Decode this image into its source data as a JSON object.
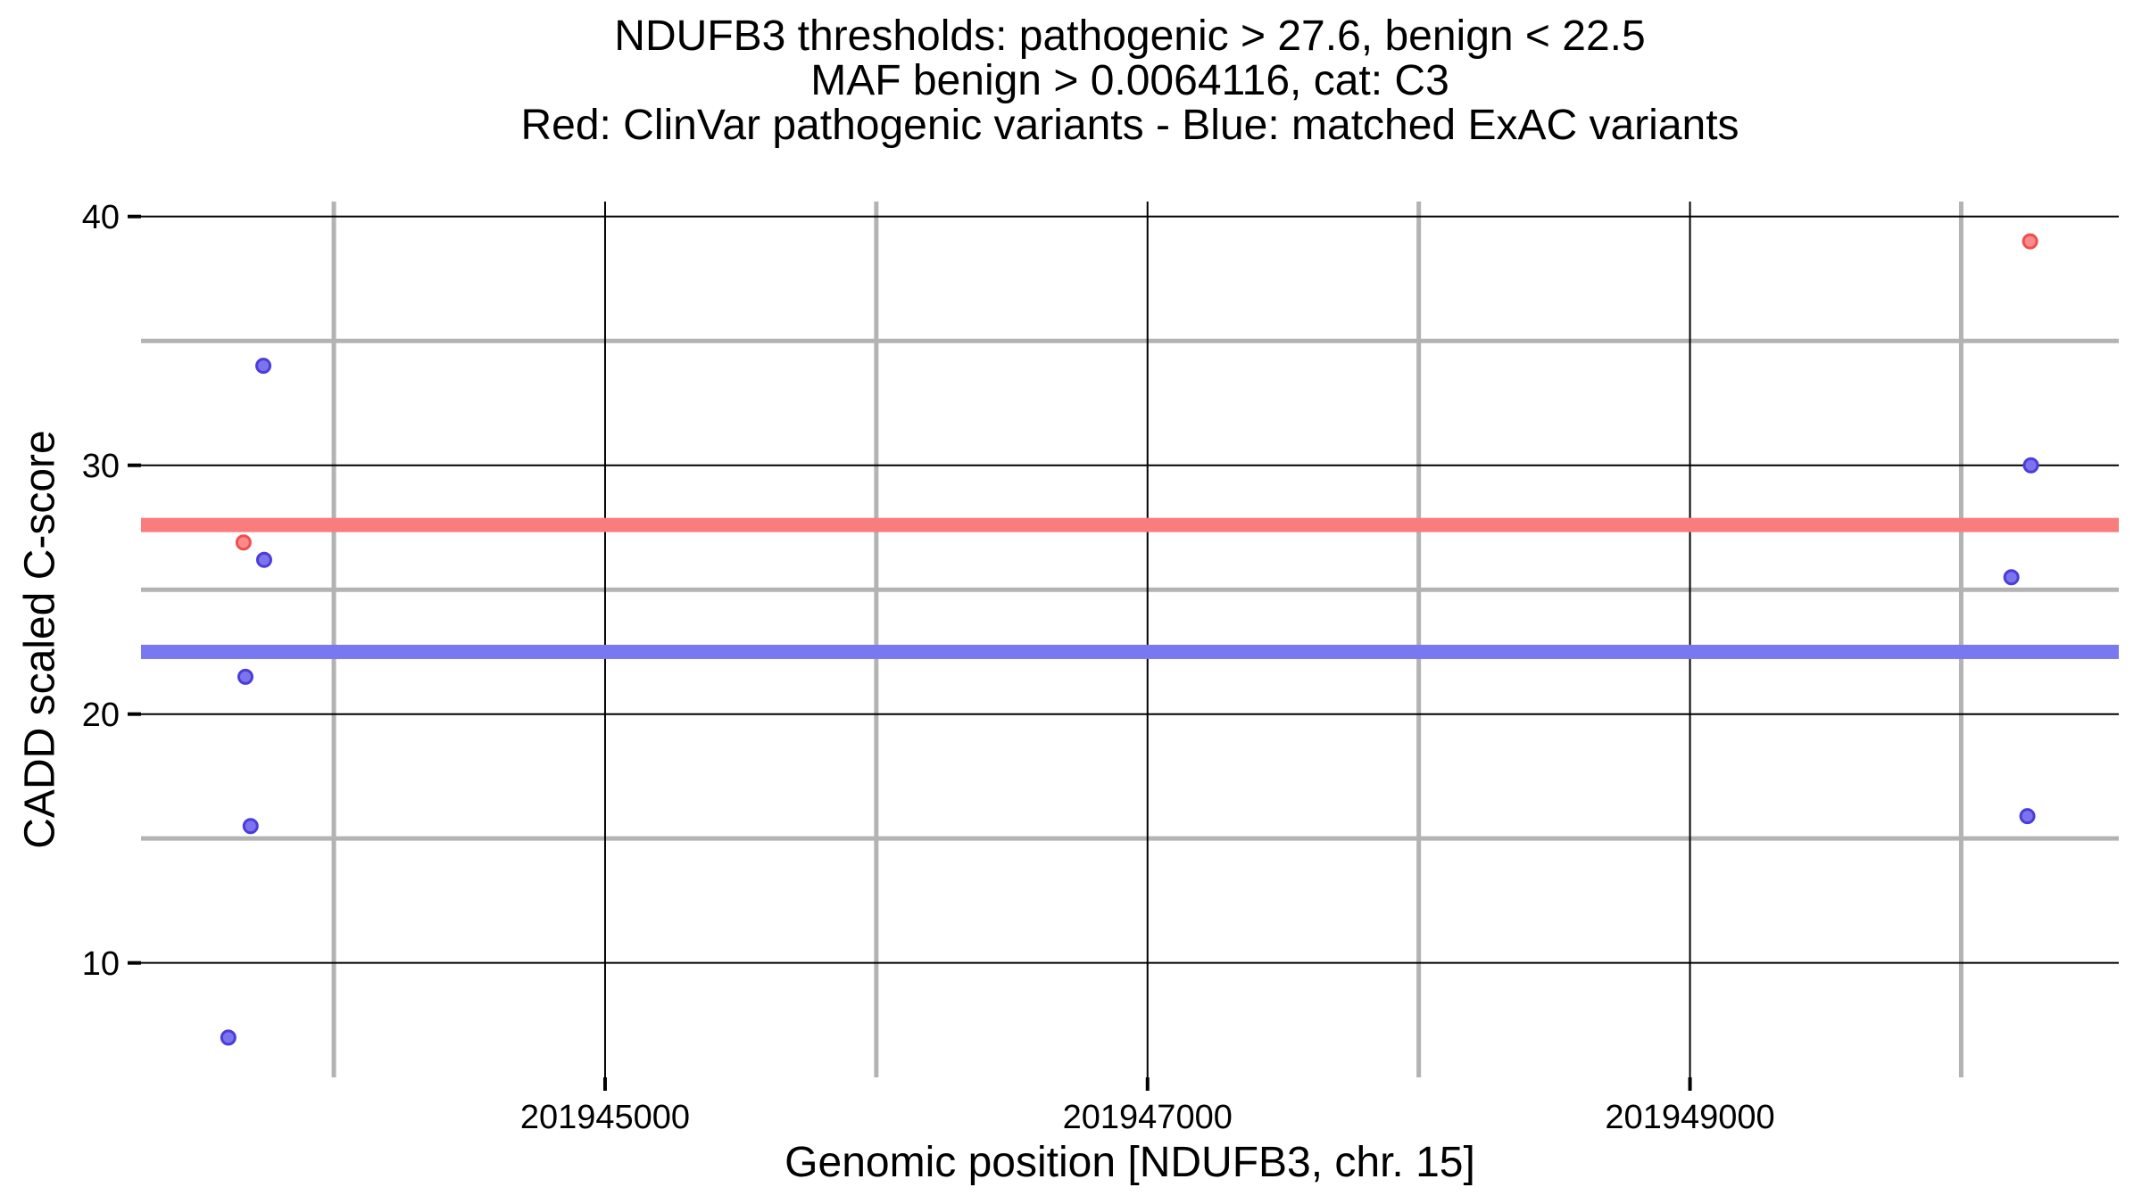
{
  "figure": {
    "title_line1": "NDUFB3 thresholds: pathogenic > 27.6, benign < 22.5",
    "title_line2": "MAF benign > 0.0064116, cat: C3",
    "title_line3": "Red: ClinVar pathogenic variants - Blue: matched ExAC variants"
  },
  "axes": {
    "x": {
      "title": "Genomic position [NDUFB3, chr. 15]"
    },
    "y": {
      "title": "CADD scaled C-score"
    }
  },
  "chart_data": {
    "type": "scatter",
    "title": "NDUFB3 thresholds: pathogenic > 27.6, benign < 22.5 | MAF benign > 0.0064116, cat: C3 | Red: ClinVar pathogenic variants - Blue: matched ExAC variants",
    "xlabel": "Genomic position [NDUFB3, chr. 15]",
    "ylabel": "CADD scaled C-score",
    "xlim": [
      201943289,
      201950581
    ],
    "ylim": [
      5.4,
      40.6
    ],
    "grid_on": true,
    "legend_position": "none",
    "x_major_ticks": [
      {
        "value": 201945000,
        "label": "201945000"
      },
      {
        "value": 201947000,
        "label": "201947000"
      },
      {
        "value": 201949000,
        "label": "201949000"
      }
    ],
    "x_minor_ticks": [
      201944000,
      201946000,
      201948000,
      201950000
    ],
    "y_major_ticks": [
      {
        "value": 40,
        "label": "40"
      },
      {
        "value": 30,
        "label": "30"
      },
      {
        "value": 20,
        "label": "20"
      },
      {
        "value": 10,
        "label": "10"
      }
    ],
    "y_minor_ticks": [
      35,
      25,
      15
    ],
    "thresholds": [
      {
        "name": "pathogenic-threshold-line",
        "label": "pathogenic > 27.6",
        "value": 27.6,
        "color": "#F97D7D"
      },
      {
        "name": "benign-threshold-line",
        "label": "benign < 22.5",
        "value": 22.5,
        "color": "#7878F0"
      }
    ],
    "series": [
      {
        "name": "ClinVar pathogenic variants",
        "color_name": "red",
        "fill": "#FB8A8A",
        "stroke": "#F04E4E",
        "points": [
          {
            "x": 201943667,
            "y": 26.9
          },
          {
            "x": 201950254,
            "y": 39.0
          }
        ]
      },
      {
        "name": "matched ExAC variants",
        "color_name": "blue",
        "fill": "#7C73EE",
        "stroke": "#4A3DDB",
        "points": [
          {
            "x": 201943740,
            "y": 34.0
          },
          {
            "x": 201943743,
            "y": 26.2
          },
          {
            "x": 201943674,
            "y": 21.5
          },
          {
            "x": 201943693,
            "y": 15.5
          },
          {
            "x": 201943611,
            "y": 7.0
          },
          {
            "x": 201950257,
            "y": 30.0
          },
          {
            "x": 201950185,
            "y": 25.5
          },
          {
            "x": 201950244,
            "y": 15.9
          }
        ]
      }
    ],
    "style": {
      "major_grid_color": "#000000",
      "major_grid_width": 2,
      "minor_grid_color": "#B3B3B3",
      "minor_grid_width": 5,
      "threshold_band_height": 16,
      "point_radius": 7.5,
      "point_stroke_width": 3,
      "tick_color": "#000000",
      "tick_length": 15,
      "tick_width": 4,
      "tick_font_size": 38,
      "text_color": "#000000"
    }
  }
}
